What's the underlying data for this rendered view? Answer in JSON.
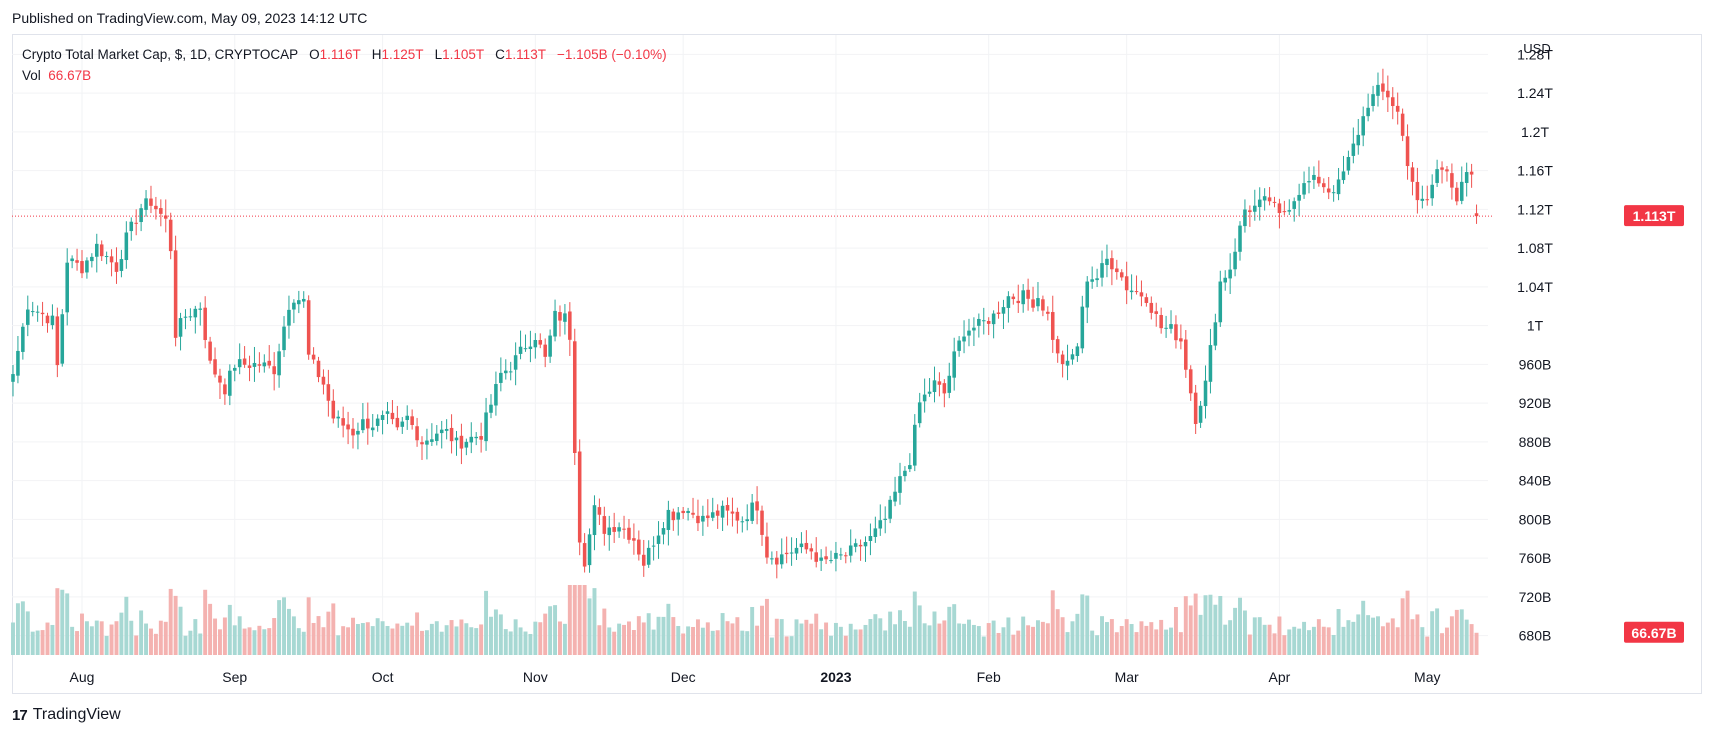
{
  "published": "Published on TradingView.com, May 09, 2023 14:12 UTC",
  "legend": {
    "symbol": "Crypto Total Market Cap, $, 1D, CRYPTOCAP",
    "o_label": "O",
    "o_value": "1.116T",
    "h_label": "H",
    "h_value": "1.125T",
    "l_label": "L",
    "l_value": "1.105T",
    "c_label": "C",
    "c_value": "1.113T",
    "change": "−1.105B (−0.10%)",
    "vol_label": "Vol",
    "vol_value": "66.67B"
  },
  "footer": {
    "brand": "TradingView",
    "logo": "17"
  },
  "colors": {
    "up": "#26a69a",
    "down": "#ef5350",
    "up_vol": "#a7d8d3",
    "down_vol": "#f4b2b0",
    "grid": "#f2f3f5",
    "price_line": "#f23645"
  },
  "chart_data": {
    "type": "candlestick",
    "title": "Crypto Total Market Cap, $, 1D, CRYPTOCAP",
    "currency_label": "USD",
    "y_unit": "USD billions",
    "ylim": [
      660,
      1300
    ],
    "y_ticks": [
      {
        "label": "1.28T",
        "value": 1280
      },
      {
        "label": "1.24T",
        "value": 1240
      },
      {
        "label": "1.2T",
        "value": 1200
      },
      {
        "label": "1.16T",
        "value": 1160
      },
      {
        "label": "1.12T",
        "value": 1120
      },
      {
        "label": "1.08T",
        "value": 1080
      },
      {
        "label": "1.04T",
        "value": 1040
      },
      {
        "label": "1T",
        "value": 1000
      },
      {
        "label": "960B",
        "value": 960
      },
      {
        "label": "920B",
        "value": 920
      },
      {
        "label": "880B",
        "value": 880
      },
      {
        "label": "840B",
        "value": 840
      },
      {
        "label": "800B",
        "value": 800
      },
      {
        "label": "760B",
        "value": 760
      },
      {
        "label": "720B",
        "value": 720
      },
      {
        "label": "680B",
        "value": 680
      }
    ],
    "x_ticks": [
      {
        "label": "Aug",
        "bar": 14,
        "bold": false
      },
      {
        "label": "Sep",
        "bar": 45,
        "bold": false
      },
      {
        "label": "Oct",
        "bar": 75,
        "bold": false
      },
      {
        "label": "Nov",
        "bar": 106,
        "bold": false
      },
      {
        "label": "Dec",
        "bar": 136,
        "bold": false
      },
      {
        "label": "2023",
        "bar": 167,
        "bold": true
      },
      {
        "label": "Feb",
        "bar": 198,
        "bold": false
      },
      {
        "label": "Mar",
        "bar": 226,
        "bold": false
      },
      {
        "label": "Apr",
        "bar": 257,
        "bold": false
      },
      {
        "label": "May",
        "bar": 287,
        "bold": false
      }
    ],
    "total_bars": 298,
    "close_anchors": [
      [
        0,
        950
      ],
      [
        3,
        1022
      ],
      [
        8,
        1005
      ],
      [
        9,
        958
      ],
      [
        11,
        1068
      ],
      [
        14,
        1060
      ],
      [
        17,
        1082
      ],
      [
        21,
        1060
      ],
      [
        23,
        1090
      ],
      [
        26,
        1122
      ],
      [
        28,
        1128
      ],
      [
        31,
        1108
      ],
      [
        32,
        1080
      ],
      [
        33,
        992
      ],
      [
        35,
        1010
      ],
      [
        38,
        1020
      ],
      [
        40,
        960
      ],
      [
        43,
        935
      ],
      [
        45,
        960
      ],
      [
        50,
        960
      ],
      [
        53,
        955
      ],
      [
        56,
        1022
      ],
      [
        57,
        1030
      ],
      [
        59,
        1025
      ],
      [
        60,
        968
      ],
      [
        63,
        940
      ],
      [
        65,
        905
      ],
      [
        69,
        890
      ],
      [
        71,
        900
      ],
      [
        73,
        898
      ],
      [
        76,
        905
      ],
      [
        78,
        890
      ],
      [
        80,
        905
      ],
      [
        83,
        880
      ],
      [
        86,
        890
      ],
      [
        88,
        890
      ],
      [
        90,
        878
      ],
      [
        91,
        880
      ],
      [
        95,
        888
      ],
      [
        99,
        950
      ],
      [
        101,
        958
      ],
      [
        104,
        980
      ],
      [
        106,
        990
      ],
      [
        108,
        965
      ],
      [
        110,
        1010
      ],
      [
        112,
        1008
      ],
      [
        113,
        990
      ],
      [
        114,
        875
      ],
      [
        115,
        782
      ],
      [
        116,
        758
      ],
      [
        118,
        810
      ],
      [
        120,
        790
      ],
      [
        123,
        795
      ],
      [
        126,
        780
      ],
      [
        128,
        755
      ],
      [
        130,
        778
      ],
      [
        133,
        808
      ],
      [
        134,
        805
      ],
      [
        136,
        812
      ],
      [
        140,
        800
      ],
      [
        144,
        808
      ],
      [
        148,
        800
      ],
      [
        150,
        812
      ],
      [
        151,
        815
      ],
      [
        153,
        765
      ],
      [
        155,
        760
      ],
      [
        159,
        770
      ],
      [
        162,
        768
      ],
      [
        164,
        755
      ],
      [
        166,
        758
      ],
      [
        169,
        763
      ],
      [
        171,
        770
      ],
      [
        174,
        780
      ],
      [
        177,
        800
      ],
      [
        180,
        840
      ],
      [
        182,
        862
      ],
      [
        184,
        920
      ],
      [
        187,
        940
      ],
      [
        189,
        930
      ],
      [
        191,
        968
      ],
      [
        193,
        995
      ],
      [
        196,
        1000
      ],
      [
        199,
        1010
      ],
      [
        202,
        1030
      ],
      [
        205,
        1030
      ],
      [
        207,
        1025
      ],
      [
        208,
        1030
      ],
      [
        210,
        1010
      ],
      [
        212,
        968
      ],
      [
        214,
        958
      ],
      [
        216,
        980
      ],
      [
        218,
        1050
      ],
      [
        220,
        1050
      ],
      [
        222,
        1068
      ],
      [
        224,
        1060
      ],
      [
        226,
        1040
      ],
      [
        228,
        1035
      ],
      [
        230,
        1030
      ],
      [
        233,
        998
      ],
      [
        235,
        996
      ],
      [
        237,
        985
      ],
      [
        240,
        905
      ],
      [
        242,
        940
      ],
      [
        245,
        1045
      ],
      [
        247,
        1060
      ],
      [
        250,
        1120
      ],
      [
        252,
        1122
      ],
      [
        255,
        1130
      ],
      [
        257,
        1112
      ],
      [
        259,
        1125
      ],
      [
        261,
        1140
      ],
      [
        263,
        1148
      ],
      [
        265,
        1150
      ],
      [
        267,
        1140
      ],
      [
        269,
        1145
      ],
      [
        271,
        1170
      ],
      [
        273,
        1200
      ],
      [
        275,
        1230
      ],
      [
        277,
        1242
      ],
      [
        279,
        1238
      ],
      [
        281,
        1220
      ],
      [
        283,
        1170
      ],
      [
        284,
        1150
      ],
      [
        285,
        1125
      ],
      [
        287,
        1130
      ],
      [
        289,
        1160
      ],
      [
        291,
        1165
      ],
      [
        293,
        1130
      ],
      [
        295,
        1155
      ],
      [
        296,
        1150
      ],
      [
        297,
        1113
      ]
    ],
    "last": {
      "open": 1116,
      "high": 1125,
      "low": 1105,
      "close": 1113
    },
    "last_price_label": "1.113T",
    "volume_label": "66.67B",
    "volume_range_billions": [
      50,
      210
    ],
    "last_volume_billions": 66.67
  }
}
